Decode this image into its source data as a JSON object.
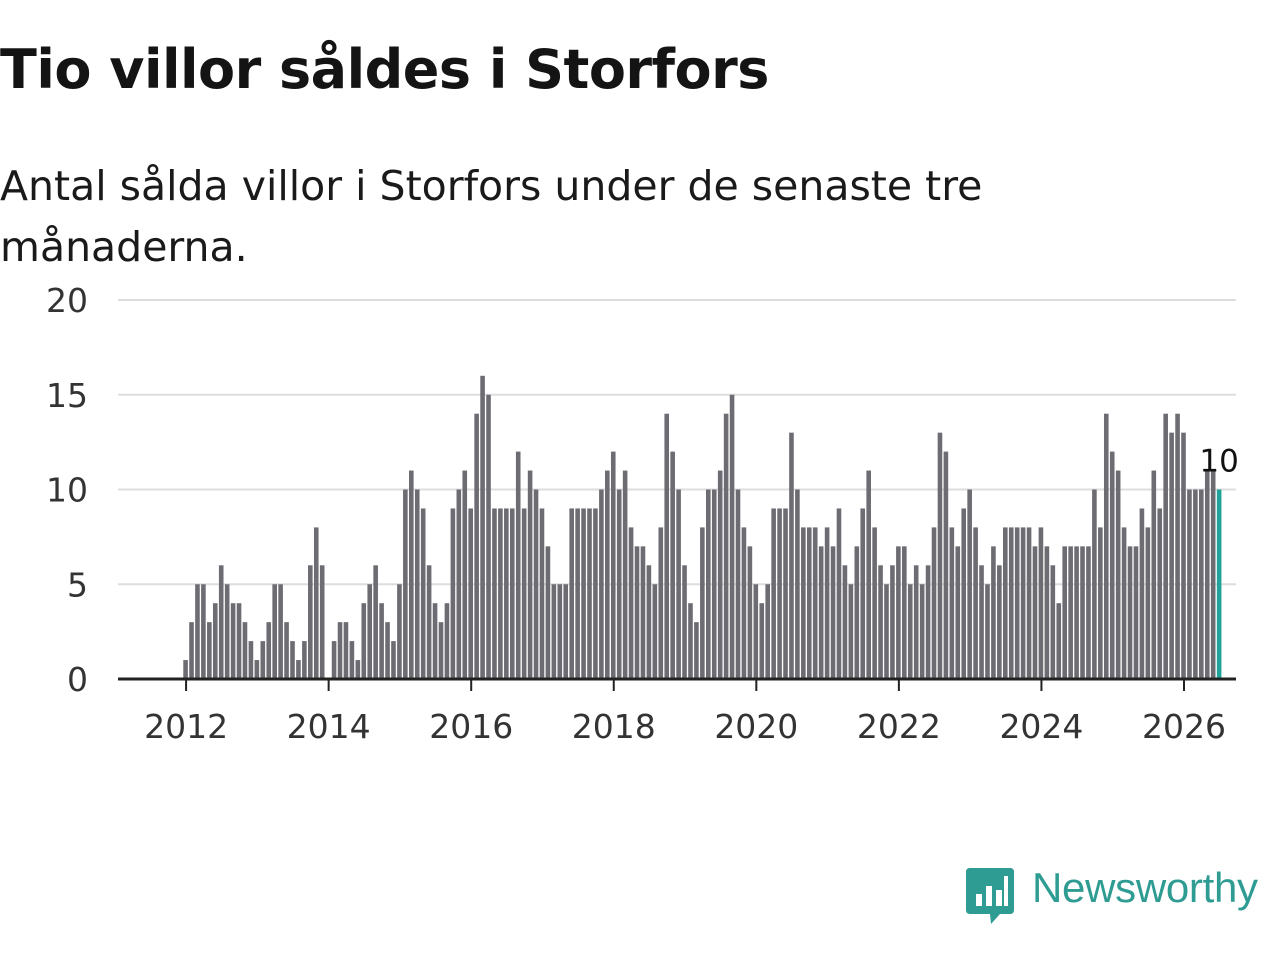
{
  "title": "Tio villor såldes i Storfors",
  "subtitle": "Antal sålda villor i Storfors under de senaste tre månaderna.",
  "brand": {
    "name": "Newsworthy",
    "color": "#2f9c93",
    "icon": "chart-bubble-icon"
  },
  "chart_data": {
    "type": "bar",
    "ylim": [
      0,
      20
    ],
    "yticks": [
      0,
      5,
      10,
      15,
      20
    ],
    "xticks": [
      "2012",
      "2014",
      "2016",
      "2018",
      "2020",
      "2022",
      "2024",
      "2026"
    ],
    "x_start_label": "2011-01",
    "bar_color": "#6e6c73",
    "highlight_color": "#20a39a",
    "highlight_label": "10",
    "values": [
      0,
      0,
      0,
      0,
      0,
      0,
      0,
      0,
      0,
      0,
      0,
      0,
      1,
      3,
      5,
      5,
      3,
      4,
      6,
      5,
      4,
      4,
      3,
      2,
      1,
      2,
      3,
      5,
      5,
      3,
      2,
      1,
      2,
      6,
      8,
      6,
      0,
      2,
      3,
      3,
      2,
      1,
      4,
      5,
      6,
      4,
      3,
      2,
      5,
      10,
      11,
      10,
      9,
      6,
      4,
      3,
      4,
      9,
      10,
      11,
      9,
      14,
      16,
      15,
      9,
      9,
      9,
      9,
      12,
      9,
      11,
      10,
      9,
      7,
      5,
      5,
      5,
      9,
      9,
      9,
      9,
      9,
      10,
      11,
      12,
      10,
      11,
      8,
      7,
      7,
      6,
      5,
      8,
      14,
      12,
      10,
      6,
      4,
      3,
      8,
      10,
      10,
      11,
      14,
      15,
      10,
      8,
      7,
      5,
      4,
      5,
      9,
      9,
      9,
      13,
      10,
      8,
      8,
      8,
      7,
      8,
      7,
      9,
      6,
      5,
      7,
      9,
      11,
      8,
      6,
      5,
      6,
      7,
      7,
      5,
      6,
      5,
      6,
      8,
      13,
      12,
      8,
      7,
      9,
      10,
      8,
      6,
      5,
      7,
      6,
      8,
      8,
      8,
      8,
      8,
      7,
      8,
      7,
      6,
      4,
      7,
      7,
      7,
      7,
      7,
      10,
      8,
      14,
      12,
      11,
      8,
      7,
      7,
      9,
      8,
      11,
      9,
      14,
      13,
      14,
      13,
      10,
      10,
      10,
      11,
      11,
      10
    ]
  }
}
